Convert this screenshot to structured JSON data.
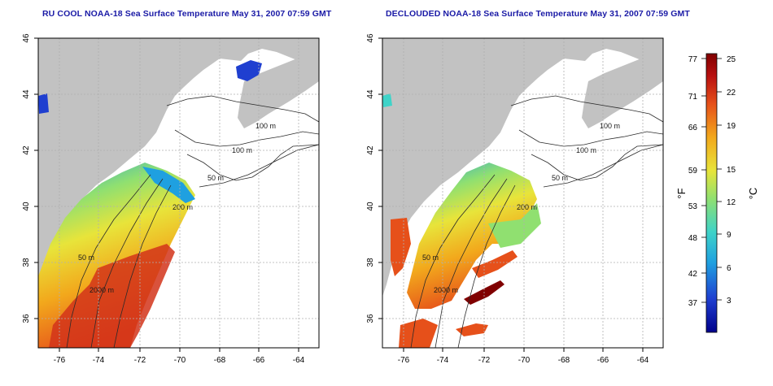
{
  "left_panel": {
    "title": "RU COOL NOAA-18 Sea Surface Temperature May 31, 2007 07:59 GMT"
  },
  "right_panel": {
    "title": "DECLOUDED NOAA-18 Sea Surface Temperature May 31, 2007 07:59 GMT"
  },
  "map_axes": {
    "x_ticks": [
      "-76",
      "-74",
      "-72",
      "-70",
      "-68",
      "-66",
      "-64"
    ],
    "y_ticks": [
      "46",
      "44",
      "42",
      "40",
      "38",
      "36"
    ],
    "xlim": [
      -77.2,
      -63.1
    ],
    "ylim": [
      35.0,
      46.0
    ]
  },
  "contour_labels": [
    "100 m",
    "100 m",
    "50 m",
    "200 m",
    "50 m",
    "2000 m"
  ],
  "colorbar": {
    "fahrenheit_ticks": [
      "77",
      "71",
      "66",
      "59",
      "53",
      "48",
      "42",
      "37"
    ],
    "celsius_ticks": [
      "25",
      "22",
      "19",
      "15",
      "12",
      "9",
      "6",
      "3"
    ],
    "label_fahrenheit": "°F",
    "label_celsius": "°C",
    "colors": [
      "#00008b",
      "#1f3fd0",
      "#1fa0e0",
      "#3fd3c8",
      "#90e070",
      "#e8e43a",
      "#f2a81c",
      "#e6501a",
      "#b81010",
      "#800000"
    ]
  },
  "colors": {
    "land": "#c2c2c2",
    "ocean": "#ffffff",
    "grid": "#b0b0b0",
    "title": "#1a1aa6"
  }
}
